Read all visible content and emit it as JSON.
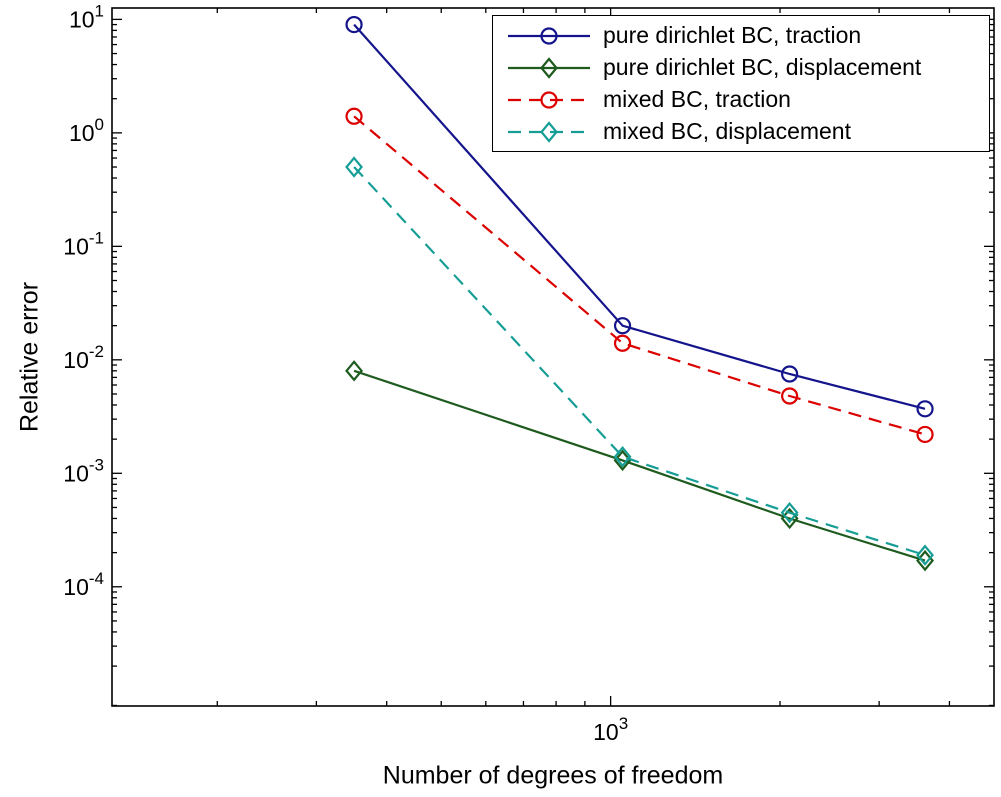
{
  "figure": {
    "background": "#ffffff"
  },
  "chart_data": {
    "type": "line",
    "title": "",
    "xlabel": "Number of degrees of freedom",
    "ylabel": "Relative error",
    "x_scale": "log",
    "y_scale": "log",
    "xlim": [
      130,
      4800
    ],
    "ylim": [
      8.9e-06,
      12.6
    ],
    "grid": false,
    "legend_position": "top-right-inside",
    "x_major_ticks": [
      1000
    ],
    "y_major_ticks": [
      10,
      1,
      0.1,
      0.01,
      0.001,
      0.0001
    ],
    "x": [
      350,
      1050,
      2080,
      3620
    ],
    "series": [
      {
        "name": "pure dirichlet BC, traction",
        "color": "#14148C",
        "line_style": "solid",
        "marker": "circle",
        "values": [
          9.0,
          0.02,
          0.0075,
          0.0037
        ]
      },
      {
        "name": "pure dirichlet BC, displacement",
        "color": "#1E5B1E",
        "line_style": "solid",
        "marker": "diamond",
        "values": [
          0.008,
          0.0013,
          0.0004,
          0.00017
        ]
      },
      {
        "name": "mixed BC, traction",
        "color": "#DC0000",
        "line_style": "dashed",
        "marker": "circle",
        "values": [
          1.4,
          0.014,
          0.0048,
          0.0022
        ]
      },
      {
        "name": "mixed BC, displacement",
        "color": "#169E96",
        "line_style": "dashed",
        "marker": "diamond",
        "values": [
          0.5,
          0.0014,
          0.00045,
          0.00019
        ]
      }
    ]
  }
}
